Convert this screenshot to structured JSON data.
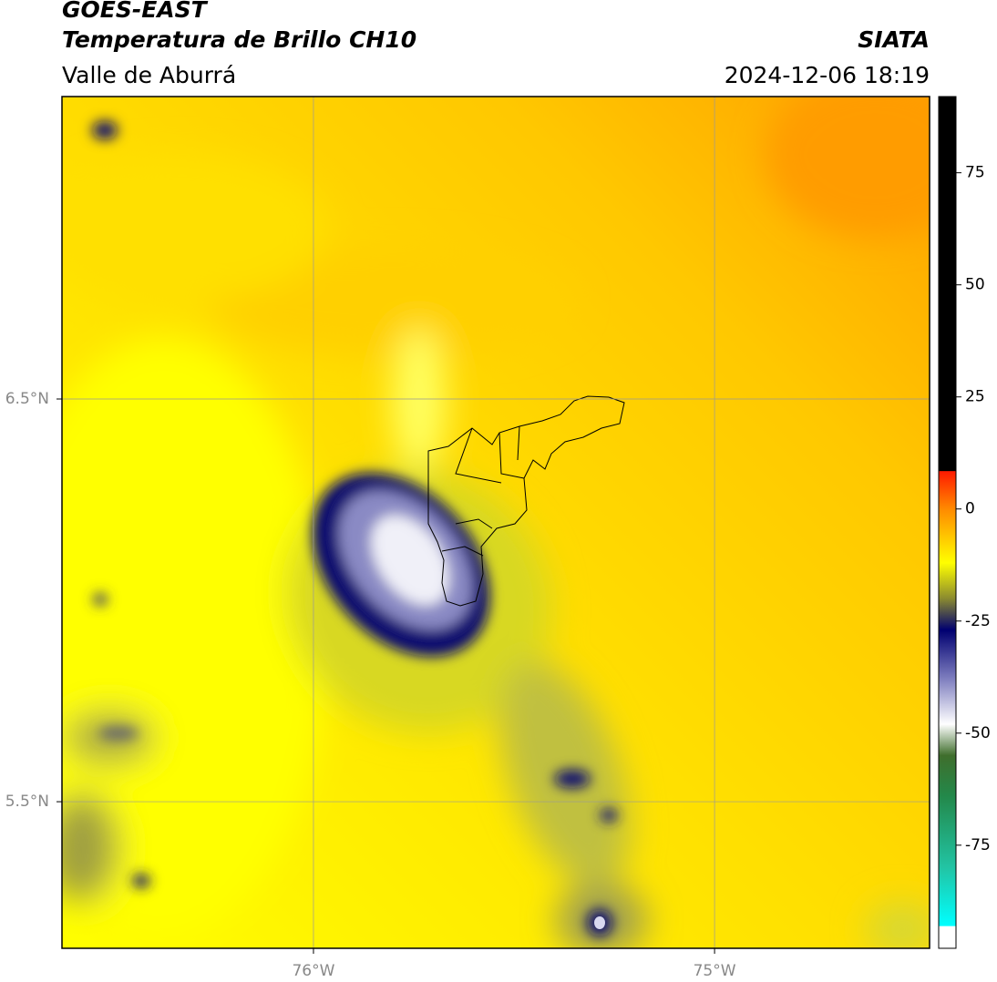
{
  "header": {
    "title": "GOES-EAST",
    "subtitle": "Temperatura de Brillo CH10",
    "source": "SIATA",
    "region": "Valle de Aburrá",
    "datetime": "2024-12-06 18:19"
  },
  "map": {
    "xlim": [
      -76.627,
      -74.464
    ],
    "ylim": [
      5.136,
      7.251
    ],
    "xticks": [
      {
        "value": -76,
        "label": "76°W"
      },
      {
        "value": -75,
        "label": "75°W"
      }
    ],
    "yticks": [
      {
        "value": 6.5,
        "label": "6.5°N"
      },
      {
        "value": 5.5,
        "label": "5.5°N"
      }
    ],
    "grid": true
  },
  "colorbar": {
    "lim": [
      -98,
      92
    ],
    "ticks": [
      75,
      50,
      25,
      0,
      -25,
      -50,
      -75
    ],
    "stops": [
      {
        "value": 92,
        "color": "#000000"
      },
      {
        "value": 8.5,
        "color": "#000000"
      },
      {
        "value": 8.4,
        "color": "#ff1a00"
      },
      {
        "value": 0,
        "color": "#ff8a00"
      },
      {
        "value": -12,
        "color": "#ffff00"
      },
      {
        "value": -20,
        "color": "#8a8a30"
      },
      {
        "value": -27,
        "color": "#000070"
      },
      {
        "value": -38,
        "color": "#8080c0"
      },
      {
        "value": -48,
        "color": "#ffffff"
      },
      {
        "value": -55,
        "color": "#3f6e2c"
      },
      {
        "value": -64,
        "color": "#23884a"
      },
      {
        "value": -80,
        "color": "#22c4a4"
      },
      {
        "value": -93,
        "color": "#00ffff"
      },
      {
        "value": -93.1,
        "color": "#ffffff"
      },
      {
        "value": -98,
        "color": "#ffffff"
      }
    ]
  }
}
